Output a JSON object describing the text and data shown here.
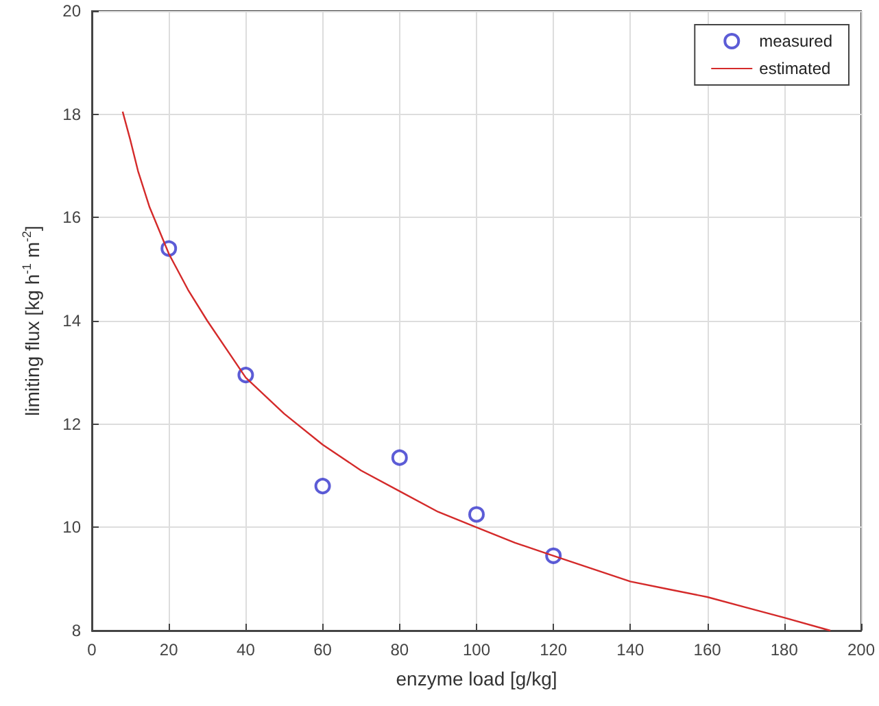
{
  "chart_data": {
    "type": "scatter",
    "xlabel": "enzyme load [g/kg]",
    "ylabel": "limiting flux [kg h$^{-1}$ m$^{-2}$]",
    "xlim": [
      0,
      200
    ],
    "xticks": [
      0,
      20,
      40,
      60,
      80,
      100,
      120,
      140,
      160,
      180,
      200
    ],
    "ylim": [
      8,
      20
    ],
    "yticks": [
      8,
      10,
      12,
      14,
      16,
      18,
      20
    ],
    "grid": true,
    "legend": "top right",
    "series": [
      {
        "name": "measured",
        "marker": "circle",
        "color": "#3333cc",
        "x": [
          20,
          40,
          60,
          80,
          100,
          120
        ],
        "values": [
          15.4,
          12.95,
          10.8,
          11.35,
          10.25,
          9.45
        ]
      },
      {
        "name": "estimated",
        "type": "line",
        "marker": "none",
        "color": "#d42a2a",
        "x": [
          8,
          10,
          12,
          15,
          20,
          25,
          30,
          40,
          50,
          60,
          70,
          80,
          90,
          100,
          110,
          120,
          130,
          140,
          150,
          160,
          170,
          180,
          192
        ],
        "values": [
          18.05,
          17.5,
          16.9,
          16.2,
          15.3,
          14.6,
          14.0,
          12.9,
          12.2,
          11.6,
          11.1,
          10.7,
          10.3,
          10.0,
          9.7,
          9.45,
          9.2,
          8.95,
          8.8,
          8.65,
          8.45,
          8.25,
          8.0
        ]
      }
    ]
  }
}
